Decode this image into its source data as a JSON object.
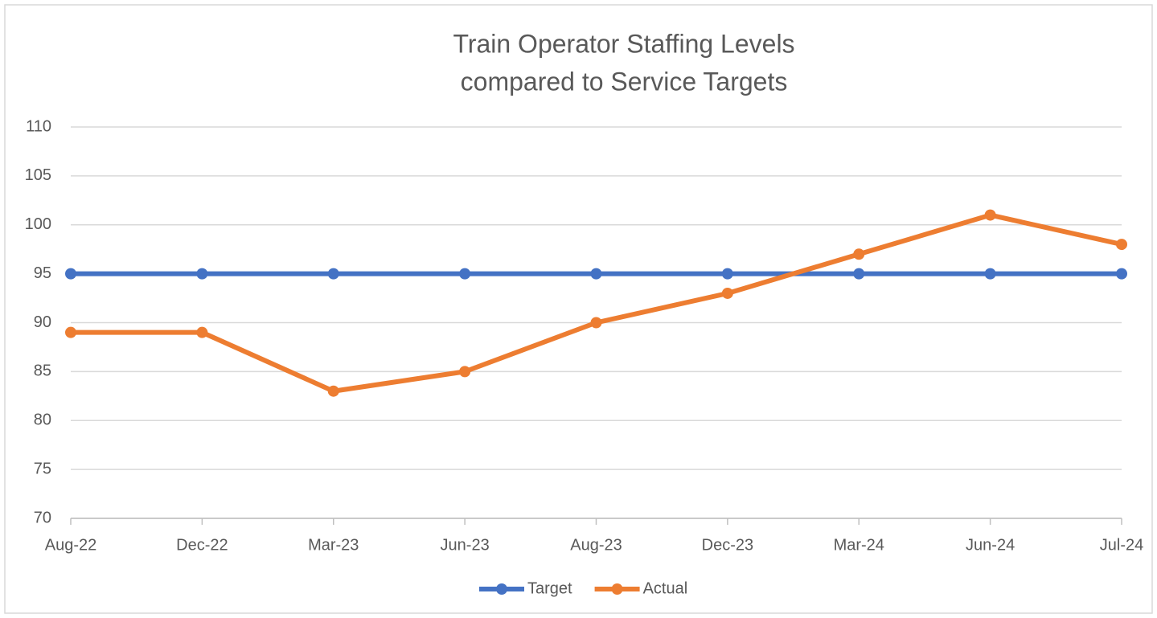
{
  "chart_data": {
    "type": "line",
    "title": [
      "Train Operator Staffing Levels",
      "compared to Service Targets"
    ],
    "categories": [
      "Aug-22",
      "Dec-22",
      "Mar-23",
      "Jun-23",
      "Aug-23",
      "Dec-23",
      "Mar-24",
      "Jun-24",
      "Jul-24"
    ],
    "series": [
      {
        "name": "Target",
        "color": "#4472c4",
        "values": [
          95,
          95,
          95,
          95,
          95,
          95,
          95,
          95,
          95
        ]
      },
      {
        "name": "Actual",
        "color": "#ed7d31",
        "values": [
          89,
          89,
          83,
          85,
          90,
          93,
          97,
          101,
          98
        ]
      }
    ],
    "ylim": [
      70,
      110
    ],
    "yticks": [
      70,
      75,
      80,
      85,
      90,
      95,
      100,
      105,
      110
    ],
    "grid": true,
    "legend": "bottom"
  }
}
